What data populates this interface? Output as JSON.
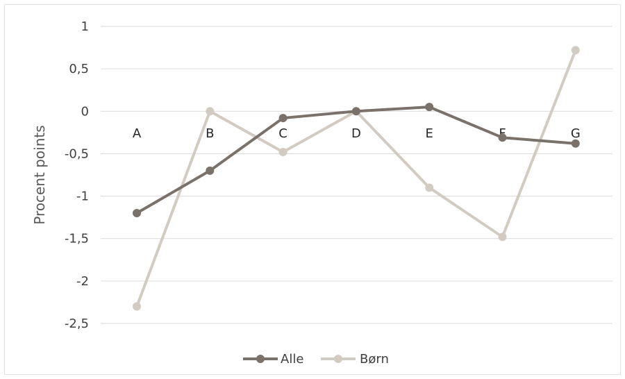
{
  "chart_data": {
    "type": "line",
    "categories": [
      "A",
      "B",
      "C",
      "D",
      "E",
      "F",
      "G"
    ],
    "series": [
      {
        "name": "Alle",
        "color": "#7a716b",
        "values": [
          -1.2,
          -0.7,
          -0.08,
          0,
          0.05,
          -0.31,
          -0.38
        ]
      },
      {
        "name": "Børn",
        "color": "#d2cbc1",
        "values": [
          -2.3,
          0,
          -0.48,
          0,
          -0.9,
          -1.48,
          0.72
        ]
      }
    ],
    "ylabel": "Procent points",
    "ylim": [
      -2.5,
      1
    ],
    "yticks": [
      1,
      0.5,
      0,
      -0.5,
      -1,
      -1.5,
      -2,
      -2.5
    ],
    "ytick_labels": [
      "1",
      "0,5",
      "0",
      "-0,5",
      "-1",
      "-1,5",
      "-2",
      "-2,5"
    ],
    "grid": true,
    "legend": "bottom"
  }
}
